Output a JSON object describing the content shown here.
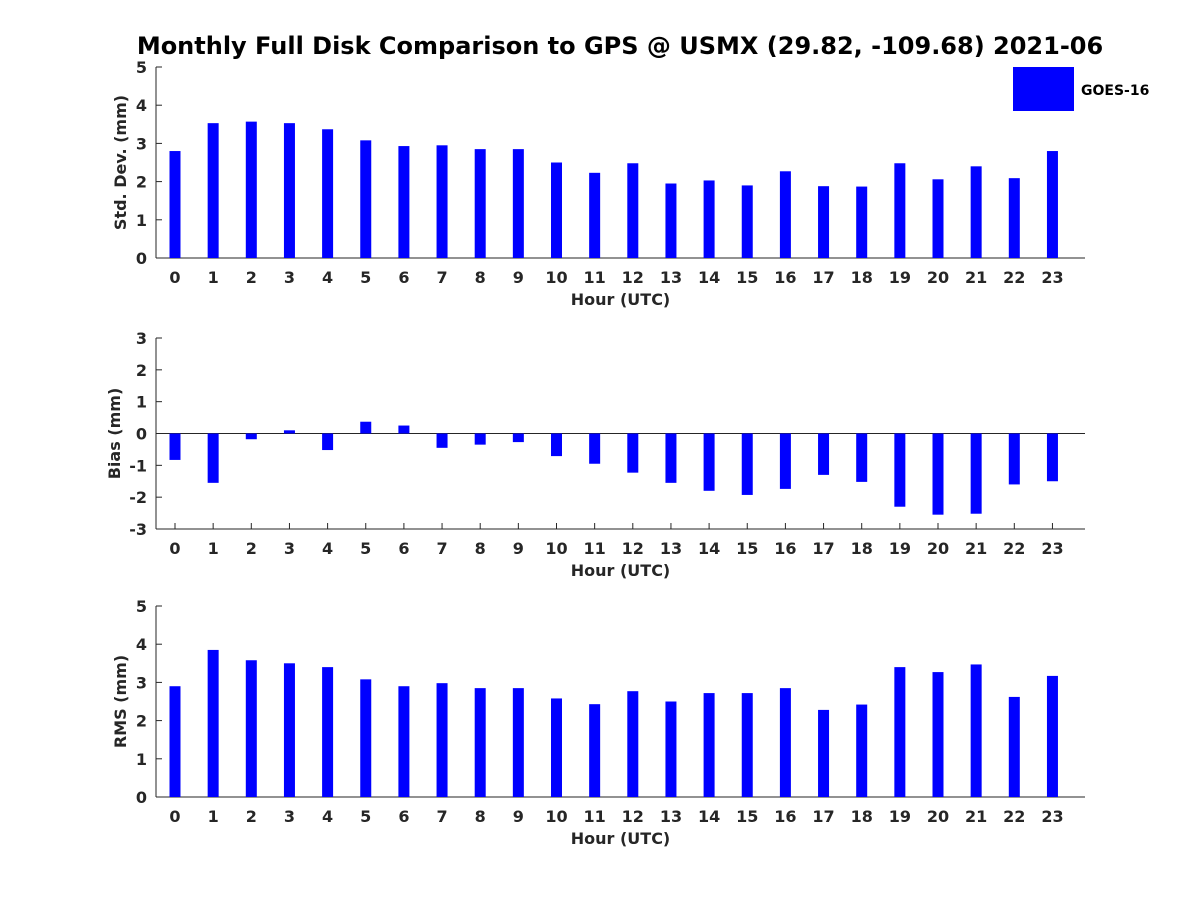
{
  "figure": {
    "title": "Monthly Full Disk Comparison to GPS @ USMX (29.82, -109.68) 2021-06",
    "legend": {
      "label": "GOES-16",
      "color": "#0000ff",
      "placement": "top-right"
    }
  },
  "chart_data": [
    {
      "type": "bar",
      "ylabel": "Std. Dev. (mm)",
      "xlabel": "Hour (UTC)",
      "ylim": [
        0,
        5
      ],
      "yticks": [
        0,
        1,
        2,
        3,
        4,
        5
      ],
      "categories": [
        "0",
        "1",
        "2",
        "3",
        "4",
        "5",
        "6",
        "7",
        "8",
        "9",
        "10",
        "11",
        "12",
        "13",
        "14",
        "15",
        "16",
        "17",
        "18",
        "19",
        "20",
        "21",
        "22",
        "23"
      ],
      "series": [
        {
          "name": "GOES-16",
          "color": "#0000ff",
          "values": [
            2.8,
            3.53,
            3.57,
            3.53,
            3.37,
            3.08,
            2.93,
            2.95,
            2.85,
            2.85,
            2.5,
            2.23,
            2.48,
            1.95,
            2.03,
            1.9,
            2.27,
            1.88,
            1.87,
            2.48,
            2.06,
            2.4,
            2.09,
            2.8
          ]
        }
      ]
    },
    {
      "type": "bar",
      "ylabel": "Bias (mm)",
      "xlabel": "Hour (UTC)",
      "ylim": [
        -3,
        3
      ],
      "yticks": [
        -3,
        -2,
        -1,
        0,
        1,
        2,
        3
      ],
      "categories": [
        "0",
        "1",
        "2",
        "3",
        "4",
        "5",
        "6",
        "7",
        "8",
        "9",
        "10",
        "11",
        "12",
        "13",
        "14",
        "15",
        "16",
        "17",
        "18",
        "19",
        "20",
        "21",
        "22",
        "23"
      ],
      "series": [
        {
          "name": "GOES-16",
          "color": "#0000ff",
          "values": [
            -0.83,
            -1.55,
            -0.18,
            0.1,
            -0.52,
            0.37,
            0.25,
            -0.45,
            -0.35,
            -0.27,
            -0.71,
            -0.95,
            -1.23,
            -1.55,
            -1.8,
            -1.93,
            -1.74,
            -1.3,
            -1.52,
            -2.3,
            -2.55,
            -2.52,
            -1.6,
            -1.5
          ]
        }
      ]
    },
    {
      "type": "bar",
      "ylabel": "RMS (mm)",
      "xlabel": "Hour (UTC)",
      "ylim": [
        0,
        5
      ],
      "yticks": [
        0,
        1,
        2,
        3,
        4,
        5
      ],
      "categories": [
        "0",
        "1",
        "2",
        "3",
        "4",
        "5",
        "6",
        "7",
        "8",
        "9",
        "10",
        "11",
        "12",
        "13",
        "14",
        "15",
        "16",
        "17",
        "18",
        "19",
        "20",
        "21",
        "22",
        "23"
      ],
      "series": [
        {
          "name": "GOES-16",
          "color": "#0000ff",
          "values": [
            2.9,
            3.85,
            3.58,
            3.5,
            3.4,
            3.08,
            2.9,
            2.98,
            2.85,
            2.85,
            2.58,
            2.43,
            2.77,
            2.5,
            2.72,
            2.72,
            2.85,
            2.28,
            2.42,
            3.4,
            3.27,
            3.47,
            2.62,
            3.17
          ]
        }
      ]
    }
  ]
}
